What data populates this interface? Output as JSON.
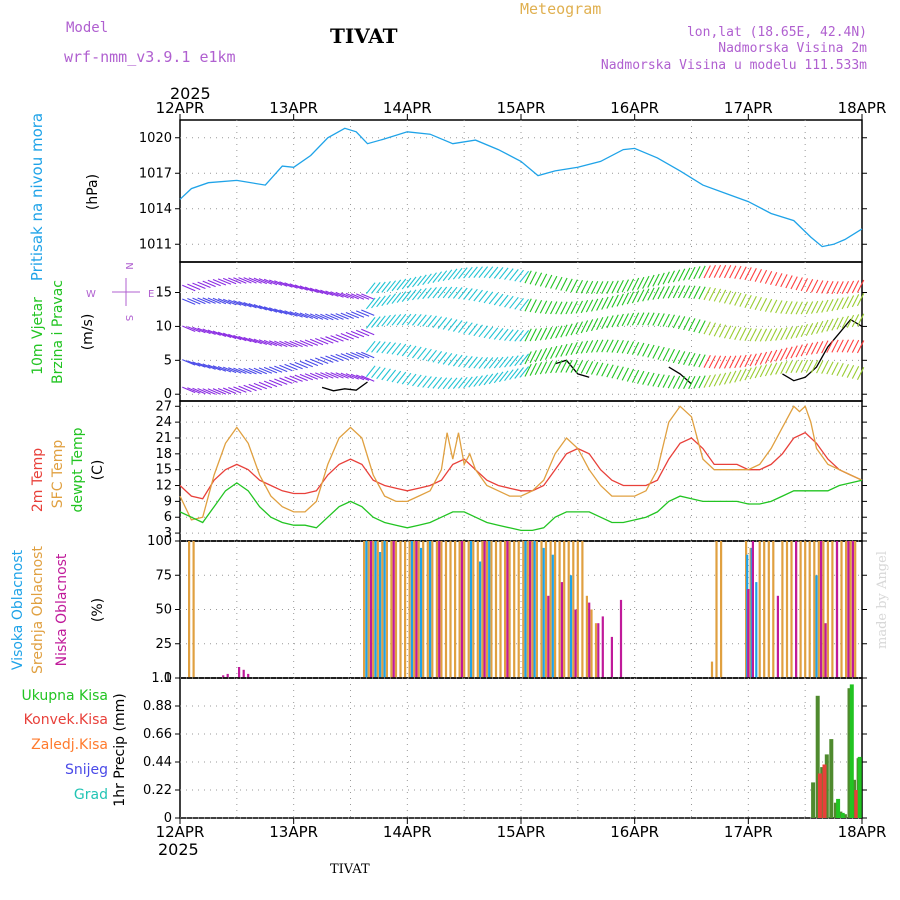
{
  "header": {
    "model_label": "Model",
    "model_name": "wrf-nmm_v3.9.1 e1km",
    "station": "TIVAT",
    "product": "Meteogram",
    "lonlat": "lon,lat (18.65E, 42.4N)",
    "elevation": "Nadmorska Visina 2m",
    "model_elevation": "Nadmorska Visina u modelu 111.533m",
    "year": "2025",
    "footer_station": "TIVAT",
    "credit": "made by Angel"
  },
  "colors": {
    "pressure": "#1fa3e8",
    "temp2m": "#e8403a",
    "sfc_temp": "#e0a040",
    "dewpoint": "#22c422",
    "high_cloud": "#1fa3e8",
    "mid_cloud": "#e0a040",
    "low_cloud": "#c01a9a",
    "total_precip": "#22c422",
    "conv_precip": "#e8403a",
    "frz_precip": "#ff7b2e",
    "snow": "#4a4ae8",
    "hail": "#22c4b4",
    "model_label": "#b060d0"
  },
  "chart_data": [
    {
      "type": "line",
      "panel": "pressure",
      "ylabel_lines": [
        "Pritisak na nivou mora"
      ],
      "unit": "(hPa)",
      "x_ticks": [
        "12APR",
        "13APR",
        "14APR",
        "15APR",
        "16APR",
        "17APR",
        "18APR"
      ],
      "x_range_days": [
        0,
        6
      ],
      "ylim": [
        1009.5,
        1021.5
      ],
      "y_ticks": [
        1011,
        1014,
        1017,
        1020
      ],
      "grid": true,
      "series": [
        {
          "color_key": "pressure",
          "x": [
            0,
            0.1,
            0.25,
            0.5,
            0.75,
            0.9,
            1.0,
            1.15,
            1.3,
            1.45,
            1.55,
            1.65,
            1.8,
            2.0,
            2.2,
            2.4,
            2.6,
            2.8,
            3.0,
            3.15,
            3.3,
            3.5,
            3.7,
            3.9,
            4.0,
            4.2,
            4.4,
            4.6,
            4.8,
            5.0,
            5.2,
            5.4,
            5.55,
            5.65,
            5.75,
            5.85,
            6.0
          ],
          "y": [
            1014.8,
            1015.7,
            1016.2,
            1016.4,
            1016.0,
            1017.6,
            1017.5,
            1018.5,
            1020.0,
            1020.8,
            1020.5,
            1019.5,
            1019.9,
            1020.5,
            1020.3,
            1019.5,
            1019.8,
            1019.0,
            1018.0,
            1016.8,
            1017.2,
            1017.5,
            1018.0,
            1019.0,
            1019.1,
            1018.3,
            1017.2,
            1016.0,
            1015.3,
            1014.6,
            1013.6,
            1013.0,
            1011.6,
            1010.8,
            1011.0,
            1011.4,
            1012.3
          ]
        }
      ]
    },
    {
      "type": "line",
      "panel": "wind",
      "ylabel_lines": [
        "10m Vjetar",
        "Brzina i Pravac"
      ],
      "unit": "(m/s)",
      "compass": {
        "n": "N",
        "w": "W",
        "e": "E",
        "s": "S"
      },
      "ylim": [
        -1,
        19.5
      ],
      "y_ticks": [
        0,
        5,
        10,
        15
      ],
      "grid": true,
      "series": [
        {
          "name": "wind_speed",
          "color": "#000000",
          "x": [
            1.25,
            1.35,
            1.45,
            1.55,
            1.65,
            3.3,
            3.4,
            3.5,
            3.6,
            4.3,
            4.4,
            4.5,
            5.3,
            5.4,
            5.5,
            5.6,
            5.7,
            5.8,
            5.9,
            6.0
          ],
          "y": [
            1.0,
            0.5,
            0.8,
            0.6,
            1.8,
            4.5,
            5.0,
            3.0,
            2.5,
            4.0,
            3.0,
            1.5,
            3.0,
            2.0,
            2.5,
            4.0,
            7.0,
            9.0,
            11.0,
            10.0
          ]
        }
      ]
    },
    {
      "type": "line",
      "panel": "temperature",
      "ylabel_lines": [
        "2m Temp",
        "SFC Temp",
        "dewpt Temp"
      ],
      "unit": "(C)",
      "ylim": [
        1.5,
        28
      ],
      "y_ticks": [
        3,
        6,
        9,
        12,
        15,
        18,
        21,
        24,
        27
      ],
      "grid": true,
      "series": [
        {
          "color_key": "temp2m",
          "x": [
            0,
            0.1,
            0.2,
            0.3,
            0.4,
            0.5,
            0.6,
            0.7,
            0.8,
            0.9,
            1.0,
            1.1,
            1.2,
            1.3,
            1.4,
            1.5,
            1.6,
            1.7,
            1.8,
            1.9,
            2.0,
            2.1,
            2.2,
            2.3,
            2.4,
            2.5,
            2.6,
            2.7,
            2.8,
            2.9,
            3.0,
            3.1,
            3.2,
            3.3,
            3.4,
            3.5,
            3.6,
            3.7,
            3.8,
            3.9,
            4.0,
            4.1,
            4.2,
            4.3,
            4.4,
            4.5,
            4.6,
            4.7,
            4.8,
            4.9,
            5.0,
            5.1,
            5.2,
            5.3,
            5.4,
            5.5,
            5.6,
            5.7,
            5.8,
            5.9,
            6.0
          ],
          "y": [
            12,
            10,
            9.5,
            13,
            15,
            16,
            15,
            13,
            12,
            11,
            10.5,
            10.5,
            11,
            14,
            16,
            17,
            16,
            13,
            12,
            11.5,
            11,
            11.5,
            12,
            13,
            16,
            17,
            15,
            13,
            12,
            11.5,
            11,
            11,
            12,
            15,
            18,
            19,
            18,
            15,
            13,
            12,
            12,
            12,
            13,
            17,
            20,
            21,
            19,
            16,
            16,
            16,
            15,
            15,
            16,
            18,
            21,
            22,
            20,
            17,
            15,
            14,
            13
          ]
        },
        {
          "color_key": "sfc_temp",
          "x": [
            0,
            0.1,
            0.2,
            0.3,
            0.4,
            0.5,
            0.6,
            0.7,
            0.8,
            0.9,
            1.0,
            1.1,
            1.2,
            1.3,
            1.4,
            1.5,
            1.6,
            1.7,
            1.8,
            1.9,
            2.0,
            2.1,
            2.2,
            2.3,
            2.35,
            2.4,
            2.45,
            2.5,
            2.55,
            2.6,
            2.7,
            2.8,
            2.9,
            3.0,
            3.1,
            3.2,
            3.3,
            3.4,
            3.5,
            3.6,
            3.7,
            3.8,
            3.9,
            4.0,
            4.1,
            4.2,
            4.3,
            4.4,
            4.5,
            4.6,
            4.7,
            4.8,
            4.9,
            5.0,
            5.1,
            5.2,
            5.3,
            5.4,
            5.45,
            5.5,
            5.55,
            5.6,
            5.7,
            5.8,
            5.9,
            6.0
          ],
          "y": [
            10,
            5.5,
            6,
            14,
            20,
            23,
            20,
            14,
            10,
            8,
            7,
            7,
            9,
            16,
            21,
            23,
            21,
            14,
            10,
            9,
            9,
            10,
            11,
            15,
            22,
            17,
            22,
            16,
            18,
            15,
            12,
            11,
            10,
            10,
            11,
            13,
            18,
            21,
            19,
            15,
            12,
            10,
            10,
            10,
            11,
            15,
            24,
            27,
            25,
            17,
            15,
            15,
            15,
            15,
            16,
            19,
            23,
            27,
            26,
            27,
            24,
            19,
            16,
            15,
            14,
            13
          ]
        },
        {
          "color_key": "dewpoint",
          "x": [
            0,
            0.1,
            0.2,
            0.3,
            0.4,
            0.5,
            0.6,
            0.7,
            0.8,
            0.9,
            1.0,
            1.1,
            1.2,
            1.3,
            1.4,
            1.5,
            1.6,
            1.7,
            1.8,
            1.9,
            2.0,
            2.1,
            2.2,
            2.3,
            2.4,
            2.5,
            2.6,
            2.7,
            2.8,
            2.9,
            3.0,
            3.1,
            3.2,
            3.3,
            3.4,
            3.5,
            3.6,
            3.7,
            3.8,
            3.9,
            4.0,
            4.1,
            4.2,
            4.3,
            4.4,
            4.5,
            4.6,
            4.7,
            4.8,
            4.9,
            5.0,
            5.1,
            5.2,
            5.3,
            5.4,
            5.5,
            5.6,
            5.7,
            5.8,
            5.9,
            6.0
          ],
          "y": [
            7,
            6,
            5,
            8,
            11,
            12.5,
            11,
            8,
            6,
            5,
            4.5,
            4.5,
            4,
            6,
            8,
            9,
            8,
            6,
            5,
            4.5,
            4,
            4.5,
            5,
            6,
            7,
            7,
            6,
            5,
            4.5,
            4,
            3.5,
            3.5,
            4,
            6,
            7,
            7,
            7,
            6,
            5,
            5,
            5.5,
            6,
            7,
            9,
            10,
            9.5,
            9,
            9,
            9,
            9,
            8.5,
            8.5,
            9,
            10,
            11,
            11,
            11,
            11,
            12,
            12.5,
            13
          ]
        }
      ]
    },
    {
      "type": "bar",
      "panel": "cloud",
      "ylabel_lines": [
        "Visoka Oblacnost",
        "Srednja Oblacnost",
        "Niska Oblacnost"
      ],
      "unit": "(%)",
      "ylim": [
        0,
        100
      ],
      "y_ticks": [
        0,
        25,
        50,
        75,
        100
      ],
      "grid": true,
      "series": [
        {
          "name": "mid",
          "color_key": "mid_cloud",
          "x": [
            0.08,
            0.12,
            1.62,
            1.66,
            1.7,
            1.74,
            1.78,
            1.82,
            1.86,
            1.9,
            1.94,
            1.98,
            2.02,
            2.06,
            2.1,
            2.14,
            2.18,
            2.22,
            2.26,
            2.3,
            2.34,
            2.38,
            2.42,
            2.46,
            2.5,
            2.54,
            2.58,
            2.62,
            2.66,
            2.7,
            2.74,
            2.78,
            2.82,
            2.86,
            2.9,
            2.94,
            2.98,
            3.02,
            3.06,
            3.1,
            3.14,
            3.18,
            3.22,
            3.26,
            3.3,
            3.34,
            3.38,
            3.42,
            3.46,
            3.5,
            3.54,
            3.58,
            3.62,
            3.66,
            4.68,
            4.72,
            4.76,
            4.98,
            5.02,
            5.1,
            5.14,
            5.18,
            5.22,
            5.3,
            5.34,
            5.38,
            5.42,
            5.46,
            5.5,
            5.54,
            5.58,
            5.62,
            5.66,
            5.7,
            5.74,
            5.78,
            5.82,
            5.86,
            5.9,
            5.94
          ],
          "values": [
            100,
            100,
            100,
            100,
            100,
            100,
            100,
            100,
            100,
            100,
            100,
            100,
            100,
            100,
            100,
            100,
            100,
            100,
            100,
            100,
            100,
            100,
            100,
            100,
            100,
            100,
            100,
            100,
            100,
            100,
            100,
            100,
            100,
            100,
            100,
            100,
            100,
            100,
            100,
            100,
            100,
            100,
            100,
            100,
            100,
            100,
            100,
            100,
            100,
            100,
            100,
            60,
            50,
            40,
            12,
            100,
            100,
            100,
            95,
            100,
            100,
            100,
            100,
            100,
            100,
            100,
            100,
            100,
            100,
            100,
            100,
            100,
            100,
            100,
            100,
            100,
            100,
            100,
            100,
            100
          ]
        },
        {
          "name": "high",
          "color_key": "high_cloud",
          "x": [
            1.64,
            1.72,
            1.76,
            1.8,
            2.04,
            2.12,
            2.2,
            2.56,
            2.64,
            2.72,
            3.04,
            3.12,
            3.2,
            3.28,
            3.44,
            4.99,
            5.03,
            5.07,
            5.6
          ],
          "values": [
            100,
            100,
            92,
            100,
            100,
            95,
            100,
            100,
            85,
            100,
            100,
            100,
            95,
            90,
            75,
            90,
            95,
            70,
            75
          ]
        },
        {
          "name": "low",
          "color_key": "low_cloud",
          "x": [
            0.38,
            0.42,
            0.52,
            0.56,
            0.6,
            1.68,
            1.88,
            2.08,
            2.28,
            2.48,
            2.68,
            2.88,
            3.08,
            3.24,
            3.36,
            3.48,
            3.6,
            3.68,
            3.72,
            3.8,
            3.88,
            5.0,
            5.04,
            5.26,
            5.42,
            5.64,
            5.68,
            5.78,
            5.88,
            5.92
          ],
          "values": [
            2,
            3,
            8,
            6,
            3,
            100,
            100,
            100,
            100,
            100,
            100,
            100,
            100,
            60,
            70,
            50,
            55,
            40,
            45,
            30,
            57,
            65,
            100,
            60,
            100,
            100,
            40,
            100,
            100,
            100
          ]
        }
      ]
    },
    {
      "type": "bar",
      "panel": "precip",
      "ylabel": "1hr Precip (mm)",
      "legend": [
        "Ukupna Kisa",
        "Konvek.Kisa",
        "Zaledj.Kisa",
        "Snijeg",
        "Grad"
      ],
      "ylim": [
        0,
        1.1
      ],
      "y_ticks": [
        0,
        0.22,
        0.44,
        0.66,
        0.88,
        1.1
      ],
      "grid": true,
      "series": [
        {
          "name": "total",
          "color": "#4f8a2e",
          "x": [
            5.57,
            5.61,
            5.65,
            5.69,
            5.73,
            5.77,
            5.81,
            5.85,
            5.89,
            5.93,
            5.97
          ],
          "values": [
            0.28,
            0.96,
            0.4,
            0.5,
            0.62,
            0.12,
            0.05,
            0.03,
            1.02,
            0.3,
            0.47
          ]
        },
        {
          "name": "convective",
          "color_key": "conv_precip",
          "x": [
            5.63,
            5.67,
            5.95
          ],
          "values": [
            0.35,
            0.42,
            0.22
          ]
        },
        {
          "name": "total_bright",
          "color_key": "total_precip",
          "x": [
            5.79,
            5.83,
            5.91,
            5.98
          ],
          "values": [
            0.15,
            0.04,
            1.05,
            0.48
          ]
        }
      ]
    }
  ]
}
